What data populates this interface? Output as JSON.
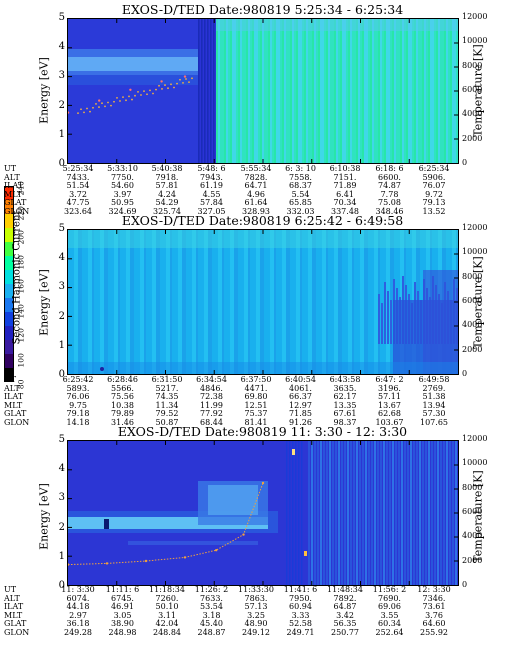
{
  "colorbar": {
    "label": "Second Harmonic Current",
    "ticks": [
      "240",
      "220",
      "200",
      "180",
      "160",
      "140",
      "120",
      "100",
      "80"
    ],
    "colors": [
      "#ff2b00",
      "#ff8000",
      "#ffd000",
      "#c8ff00",
      "#40ff40",
      "#00ffa0",
      "#00e0e0",
      "#1ab0f0",
      "#1a78f0",
      "#1040e0",
      "#2020c0",
      "#3a1aa0",
      "#300060",
      "#000000"
    ]
  },
  "panels": [
    {
      "title": "EXOS-D/TED   Date:980819  5:25:34 - 6:25:34",
      "ylabel": "Energy [eV]",
      "y2label": "Temperature [K]",
      "yticks": [
        "5",
        "4",
        "3",
        "2",
        "1",
        "0"
      ],
      "y2ticks": [
        "12000",
        "10000",
        "8000",
        "6000",
        "4000",
        "2000",
        "0"
      ],
      "table": {
        "labels": [
          "UT",
          "ALT",
          "ILAT",
          "MLT",
          "GLAT",
          "GLON"
        ],
        "columns": [
          [
            "5:25:34",
            "7433.",
            "51.54",
            "3.72",
            "47.75",
            "323.64"
          ],
          [
            "5:33:10",
            "7750.",
            "54.60",
            "3.97",
            "50.95",
            "324.69"
          ],
          [
            "5:40:38",
            "7918.",
            "57.81",
            "4.24",
            "54.29",
            "325.74"
          ],
          [
            "5:48: 6",
            "7943.",
            "61.19",
            "4.55",
            "57.84",
            "327.05"
          ],
          [
            "5:55:34",
            "7828.",
            "64.71",
            "4.96",
            "61.64",
            "328.93"
          ],
          [
            "6: 3: 10",
            "7558.",
            "68.37",
            "5.54",
            "65.85",
            "332.03"
          ],
          [
            "6:10:38",
            "7151.",
            "71.89",
            "6.41",
            "70.34",
            "337.48"
          ],
          [
            "6:18: 6",
            "6600.",
            "74.87",
            "7.78",
            "75.08",
            "348.46"
          ],
          [
            "6:25:34",
            "5906.",
            "76.07",
            "9.72",
            "79.13",
            "13.52"
          ]
        ]
      },
      "chart_data": {
        "type": "heatmap",
        "title": "EXOS-D/TED   Date:980819  5:25:34 - 6:25:34",
        "xlabel": "UT",
        "ylabel": "Energy [eV]",
        "y2label": "Temperature [K]",
        "ylim": [
          0,
          5
        ],
        "y2lim": [
          0,
          12000
        ],
        "x": [
          "5:25:34",
          "5:33:10",
          "5:40:38",
          "5:48: 6",
          "5:55:34",
          "6: 3: 10",
          "6:10:38",
          "6:18: 6",
          "6:25:34"
        ],
        "temperature_trace": [
          {
            "ut_fraction": 0.0,
            "temperature_k": 4200
          },
          {
            "ut_fraction": 0.08,
            "temperature_k": 5200
          },
          {
            "ut_fraction": 0.16,
            "temperature_k": 6100
          },
          {
            "ut_fraction": 0.24,
            "temperature_k": 6800
          },
          {
            "ut_fraction": 0.3,
            "temperature_k": 7200
          }
        ]
      }
    },
    {
      "title": "EXOS-D/TED   Date:980819  6:25:42 - 6:49:58",
      "ylabel": "Energy [eV]",
      "y2label": "Temperature [K]",
      "yticks": [
        "5",
        "4",
        "3",
        "2",
        "1",
        "0"
      ],
      "y2ticks": [
        "12000",
        "10000",
        "8000",
        "6000",
        "4000",
        "2000",
        "0"
      ],
      "table": {
        "labels": [
          "UT",
          "ALT",
          "ILAT",
          "MLT",
          "GLAT",
          "GLON"
        ],
        "columns": [
          [
            "6:25:42",
            "5893.",
            "76.06",
            "9.75",
            "79.18",
            "14.18"
          ],
          [
            "6:28:46",
            "5566.",
            "75.56",
            "10.38",
            "79.89",
            "31.46"
          ],
          [
            "6:31:50",
            "5217.",
            "74.35",
            "11.34",
            "79.52",
            "50.87"
          ],
          [
            "6:34:54",
            "4846.",
            "72.38",
            "11.99",
            "77.92",
            "68.44"
          ],
          [
            "6:37:50",
            "4471.",
            "69.80",
            "12.51",
            "75.37",
            "81.41"
          ],
          [
            "6:40:54",
            "4061.",
            "66.37",
            "12.97",
            "71.85",
            "91.26"
          ],
          [
            "6:43:58",
            "3635.",
            "62.17",
            "13.35",
            "67.61",
            "98.37"
          ],
          [
            "6:47: 2",
            "3196.",
            "57.11",
            "13.67",
            "62.68",
            "103.67"
          ],
          [
            "6:49:58",
            "2769.",
            "51.38",
            "13.94",
            "57.30",
            "107.65"
          ]
        ]
      },
      "chart_data": {
        "type": "heatmap",
        "title": "EXOS-D/TED   Date:980819  6:25:42 - 6:49:58",
        "xlabel": "UT",
        "ylabel": "Energy [eV]",
        "y2label": "Temperature [K]",
        "ylim": [
          0,
          5
        ],
        "y2lim": [
          0,
          12000
        ],
        "x": [
          "6:25:42",
          "6:28:46",
          "6:31:50",
          "6:34:54",
          "6:37:50",
          "6:40:54",
          "6:43:58",
          "6:47: 2",
          "6:49:58"
        ]
      }
    },
    {
      "title": "EXOS-D/TED   Date:980819  11: 3:30 - 12: 3:30",
      "ylabel": "Energy [eV]",
      "y2label": "Temperature [K]",
      "yticks": [
        "5",
        "4",
        "3",
        "2",
        "1",
        "0"
      ],
      "y2ticks": [
        "12000",
        "10000",
        "8000",
        "6000",
        "4000",
        "2000",
        "0"
      ],
      "table": {
        "labels": [
          "UT",
          "ALT",
          "ILAT",
          "MLT",
          "GLAT",
          "GLON"
        ],
        "columns": [
          [
            "11: 3:30",
            "6074.",
            "44.18",
            "2.97",
            "36.18",
            "249.28"
          ],
          [
            "11:11: 6",
            "6745.",
            "46.91",
            "3.05",
            "38.90",
            "248.98"
          ],
          [
            "11:18:34",
            "7260.",
            "50.10",
            "3.11",
            "42.04",
            "248.84"
          ],
          [
            "11:26: 2",
            "7633.",
            "53.54",
            "3.18",
            "45.40",
            "248.87"
          ],
          [
            "11:33:30",
            "7863.",
            "57.13",
            "3.25",
            "48.90",
            "249.12"
          ],
          [
            "11:41: 6",
            "7950.",
            "60.94",
            "3.33",
            "52.58",
            "249.71"
          ],
          [
            "11:48:34",
            "7892.",
            "64.87",
            "3.42",
            "56.35",
            "250.77"
          ],
          [
            "11:56: 2",
            "7690.",
            "69.06",
            "3.55",
            "60.34",
            "252.64"
          ],
          [
            "12: 3:30",
            "7346.",
            "73.61",
            "3.76",
            "64.60",
            "255.92"
          ]
        ]
      },
      "chart_data": {
        "type": "heatmap",
        "title": "EXOS-D/TED   Date:980819  11: 3:30 - 12: 3:30",
        "xlabel": "UT",
        "ylabel": "Energy [eV]",
        "y2label": "Temperature [K]",
        "ylim": [
          0,
          5
        ],
        "y2lim": [
          0,
          12000
        ],
        "x": [
          "11: 3:30",
          "11:11: 6",
          "11:18:34",
          "11:26: 2",
          "11:33:30",
          "11:41: 6",
          "11:48:34",
          "11:56: 2",
          "12: 3:30"
        ],
        "temperature_trace": [
          {
            "ut_fraction": 0.0,
            "temperature_k": 1700
          },
          {
            "ut_fraction": 0.1,
            "temperature_k": 1800
          },
          {
            "ut_fraction": 0.2,
            "temperature_k": 2000
          },
          {
            "ut_fraction": 0.3,
            "temperature_k": 2300
          },
          {
            "ut_fraction": 0.38,
            "temperature_k": 2900
          },
          {
            "ut_fraction": 0.45,
            "temperature_k": 4200
          },
          {
            "ut_fraction": 0.5,
            "temperature_k": 8500
          }
        ]
      }
    }
  ]
}
